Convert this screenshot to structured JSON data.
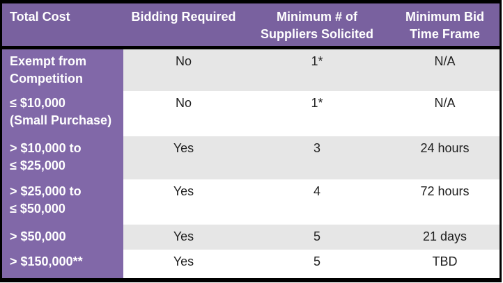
{
  "colors": {
    "header_bg": "#79619F",
    "row_header_bg": "#8168A8",
    "band_bg": "#E6E6E6",
    "plain_bg": "#FFFFFF",
    "border": "#000000",
    "header_text": "#FFFFFF",
    "body_text": "#1F1F1F"
  },
  "table": {
    "headers": [
      "Total Cost",
      "Bidding Required",
      "Minimum # of\nSuppliers Solicited",
      "Minimum Bid\nTime Frame"
    ],
    "rows": [
      {
        "cost": "Exempt from\nCompetition",
        "bidding": "No",
        "suppliers": "1*",
        "timeframe": "N/A"
      },
      {
        "cost": "≤ $10,000\n(Small Purchase)",
        "bidding": "No",
        "suppliers": "1*",
        "timeframe": "N/A"
      },
      {
        "cost": "> $10,000 to\n≤ $25,000",
        "bidding": "Yes",
        "suppliers": "3",
        "timeframe": "24 hours"
      },
      {
        "cost": "> $25,000 to\n≤ $50,000",
        "bidding": "Yes",
        "suppliers": "4",
        "timeframe": "72 hours"
      },
      {
        "cost": "> $50,000",
        "bidding": "Yes",
        "suppliers": "5",
        "timeframe": "21 days"
      },
      {
        "cost": "> $150,000**",
        "bidding": "Yes",
        "suppliers": "5",
        "timeframe": "TBD"
      }
    ]
  }
}
